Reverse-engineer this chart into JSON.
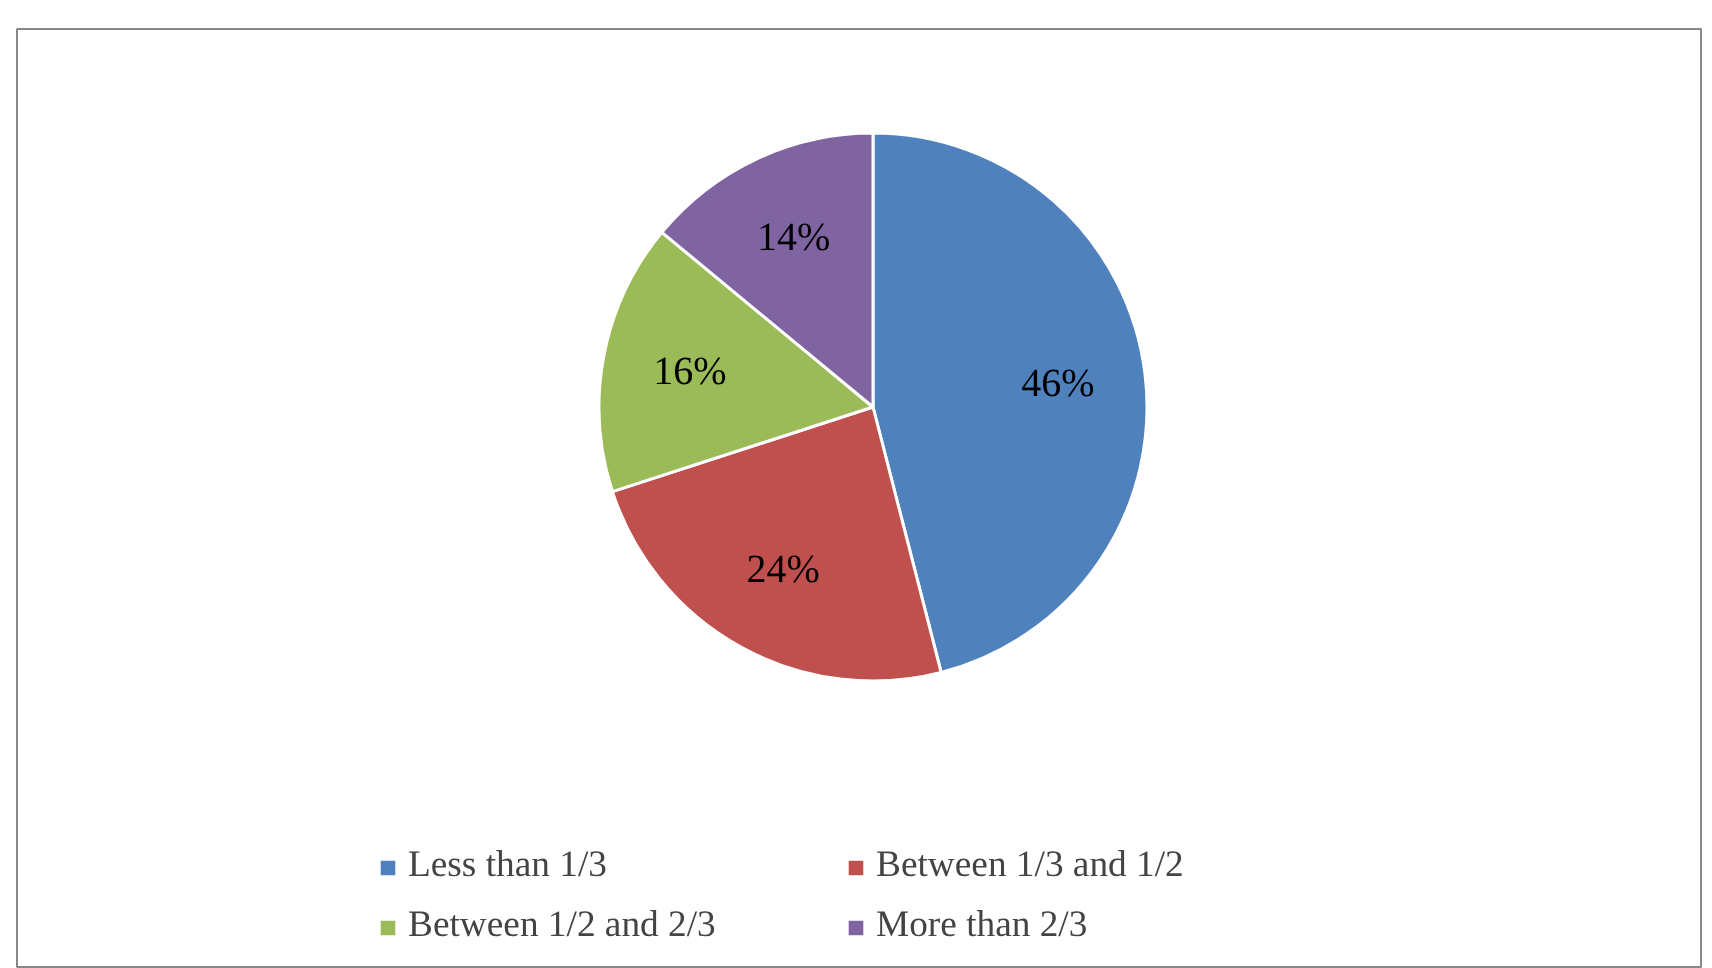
{
  "chart_data": {
    "type": "pie",
    "categories": [
      "Less than 1/3",
      "Between 1/3 and 1/2",
      "Between 1/2 and 2/3",
      "More than 2/3"
    ],
    "values": [
      46,
      24,
      16,
      14
    ],
    "colors": [
      "#4f81bd",
      "#c0504d",
      "#9bbb59",
      "#8064a2"
    ],
    "value_labels": [
      "46%",
      "24%",
      "16%",
      "14%"
    ],
    "legend": "bottom"
  }
}
